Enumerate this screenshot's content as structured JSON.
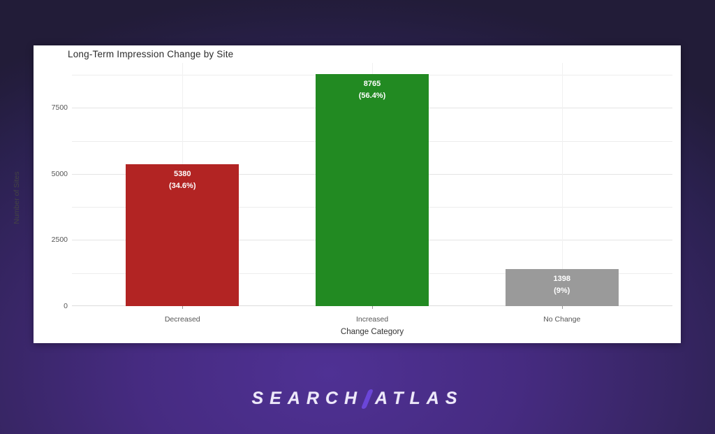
{
  "panel": {
    "background": "#ffffff"
  },
  "logo": {
    "text_left": "SEARCH",
    "text_right": "ATLAS",
    "slash_color": "#6b46d8",
    "text_color": "#eee9fa"
  },
  "chart_data": {
    "type": "bar",
    "title": "Long-Term Impression Change by Site",
    "xlabel": "Change Category",
    "ylabel": "Number of Sites",
    "categories": [
      "Decreased",
      "Increased",
      "No Change"
    ],
    "values": [
      5380,
      8765,
      1398
    ],
    "value_labels": [
      "5380",
      "8765",
      "1398"
    ],
    "percent_labels": [
      "(34.6%)",
      "(56.4%)",
      "(9%)"
    ],
    "bar_colors": [
      "#b22423",
      "#228a22",
      "#9a9a9a"
    ],
    "bar_label_color": "#ffffff",
    "ylim": [
      0,
      9200
    ],
    "yticks": [
      0,
      2500,
      5000,
      7500
    ],
    "minor_grid_step": 1250,
    "grid": true,
    "legend": "none"
  }
}
